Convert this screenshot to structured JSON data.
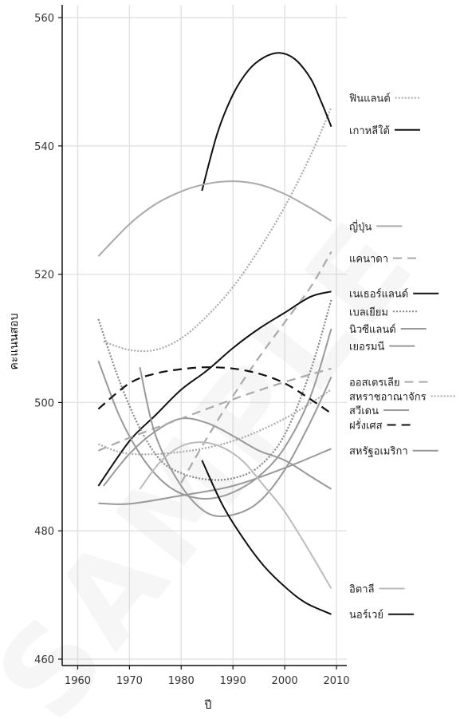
{
  "watermark": "SAMPLE",
  "chart_data": {
    "type": "line",
    "xlabel": "ปี",
    "ylabel": "คะแนนสอบ",
    "xlim": [
      1957,
      2012
    ],
    "ylim": [
      459,
      562
    ],
    "xticks": [
      1960,
      1970,
      1980,
      1990,
      2000,
      2010
    ],
    "yticks": [
      460,
      480,
      500,
      520,
      540,
      560
    ],
    "grid": true,
    "legend_position": "right",
    "series": [
      {
        "name": "ฟินแลนด์",
        "color": "#aaaaaa",
        "style": "dotted",
        "label_y": 547.5,
        "x": [
          1965,
          1970,
          1975,
          1980,
          1985,
          1990,
          1995,
          2000,
          2005,
          2009
        ],
        "y": [
          509.5,
          508.2,
          508.2,
          510.0,
          513.5,
          518.0,
          523.8,
          530.5,
          538.5,
          546.0
        ]
      },
      {
        "name": "เกาหลีใต้",
        "color": "#111111",
        "style": "solid",
        "label_y": 542.5,
        "x": [
          1984,
          1987,
          1990,
          1993,
          1996,
          1999,
          2002,
          2005,
          2007,
          2009
        ],
        "y": [
          533.0,
          542.0,
          548.0,
          551.8,
          553.8,
          554.5,
          553.5,
          550.5,
          547.0,
          543.0
        ]
      },
      {
        "name": "ญี่ปุ่น",
        "color": "#aaaaaa",
        "style": "solid",
        "label_y": 527.5,
        "x": [
          1964,
          1970,
          1975,
          1980,
          1985,
          1990,
          1995,
          2000,
          2005,
          2009
        ],
        "y": [
          522.8,
          527.8,
          530.9,
          532.9,
          534.1,
          534.5,
          534.0,
          532.5,
          530.3,
          528.3
        ]
      },
      {
        "name": "แคนาดา",
        "color": "#aaaaaa",
        "style": "dashed",
        "label_y": 522.5,
        "x": [
          1980,
          1985,
          1990,
          1995,
          2000,
          2005,
          2009
        ],
        "y": [
          487.5,
          494.5,
          501.0,
          507.0,
          512.5,
          518.0,
          523.5
        ]
      },
      {
        "name": "เนเธอร์แลนด์",
        "color": "#111111",
        "style": "solid",
        "label_y": 517.0,
        "x": [
          1964,
          1970,
          1975,
          1980,
          1985,
          1990,
          1995,
          2000,
          2005,
          2009
        ],
        "y": [
          487.0,
          494.0,
          498.0,
          502.0,
          505.0,
          508.5,
          511.5,
          514.0,
          516.5,
          517.3
        ]
      },
      {
        "name": "เบลเยียม",
        "color": "#888888",
        "style": "dotted",
        "label_y": 514.2,
        "x": [
          1964,
          1968,
          1972,
          1976,
          1980,
          1985,
          1990,
          1995,
          2000,
          2005,
          2009
        ],
        "y": [
          513.0,
          503.5,
          496.0,
          491.0,
          489.0,
          488.0,
          488.2,
          490.0,
          495.0,
          505.0,
          516.0
        ]
      },
      {
        "name": "นิวซีแลนด์",
        "color": "#999999",
        "style": "solid",
        "label_y": 511.5,
        "x": [
          1965,
          1970,
          1975,
          1980,
          1985,
          1990,
          1995,
          2000,
          2005,
          2009
        ],
        "y": [
          487.0,
          492.0,
          495.5,
          497.5,
          496.8,
          494.8,
          492.5,
          491.0,
          488.5,
          486.5
        ]
      },
      {
        "name": "เยอรมนี",
        "color": "#999999",
        "style": "solid",
        "label_y": 508.8,
        "x": [
          1964,
          1968,
          1972,
          1976,
          1980,
          1985,
          1990,
          1995,
          2000,
          2005,
          2009
        ],
        "y": [
          506.5,
          498.0,
          492.0,
          488.0,
          485.8,
          485.0,
          486.0,
          488.5,
          493.0,
          501.0,
          511.5
        ]
      },
      {
        "name": "ออสเตรเลีย",
        "color": "#aaaaaa",
        "style": "dashed",
        "label_y": 503.2,
        "x": [
          1964,
          1970,
          1980,
          1990,
          2000,
          2009
        ],
        "y": [
          492.5,
          494.5,
          497.5,
          500.5,
          503.2,
          505.3
        ]
      },
      {
        "name": "สหราชอาณาจักร",
        "color": "#aaaaaa",
        "style": "dotted",
        "label_y": 501.0,
        "x": [
          1964,
          1970,
          1980,
          1990,
          2000,
          2009
        ],
        "y": [
          493.5,
          492.0,
          492.3,
          494.0,
          497.5,
          502.0
        ]
      },
      {
        "name": "สวีเดน",
        "color": "#999999",
        "style": "solid",
        "label_y": 498.8,
        "x": [
          1972,
          1975,
          1980,
          1985,
          1990,
          1995,
          2000,
          2005,
          2009
        ],
        "y": [
          505.5,
          495.0,
          487.0,
          482.8,
          482.5,
          484.5,
          489.5,
          497.0,
          504.0
        ]
      },
      {
        "name": "ฝรั่งเศส",
        "color": "#111111",
        "style": "dashed",
        "label_y": 496.5,
        "x": [
          1964,
          1970,
          1975,
          1980,
          1985,
          1990,
          1995,
          2000,
          2005,
          2009
        ],
        "y": [
          499.0,
          503.0,
          504.5,
          505.2,
          505.5,
          505.3,
          504.5,
          503.0,
          500.5,
          498.3
        ]
      },
      {
        "name": "สหรัฐอเมริกา",
        "color": "#999999",
        "style": "solid",
        "label_y": 492.5,
        "x": [
          1964,
          1970,
          1980,
          1990,
          2000,
          2009
        ],
        "y": [
          484.3,
          484.2,
          485.5,
          487.0,
          489.8,
          492.8
        ]
      },
      {
        "name": "อิตาลี",
        "color": "#bbbbbb",
        "style": "solid",
        "label_y": 471.0,
        "x": [
          1972,
          1976,
          1980,
          1984,
          1988,
          1992,
          1996,
          2000,
          2005,
          2009
        ],
        "y": [
          486.5,
          490.8,
          493.2,
          493.8,
          493.0,
          490.8,
          487.0,
          483.0,
          476.5,
          471.0
        ]
      },
      {
        "name": "นอร์เวย์",
        "color": "#111111",
        "style": "solid",
        "label_y": 467.0,
        "x": [
          1984,
          1988,
          1992,
          1996,
          2000,
          2004,
          2009
        ],
        "y": [
          491.0,
          484.0,
          478.8,
          474.5,
          471.3,
          468.8,
          467.0
        ]
      }
    ]
  }
}
